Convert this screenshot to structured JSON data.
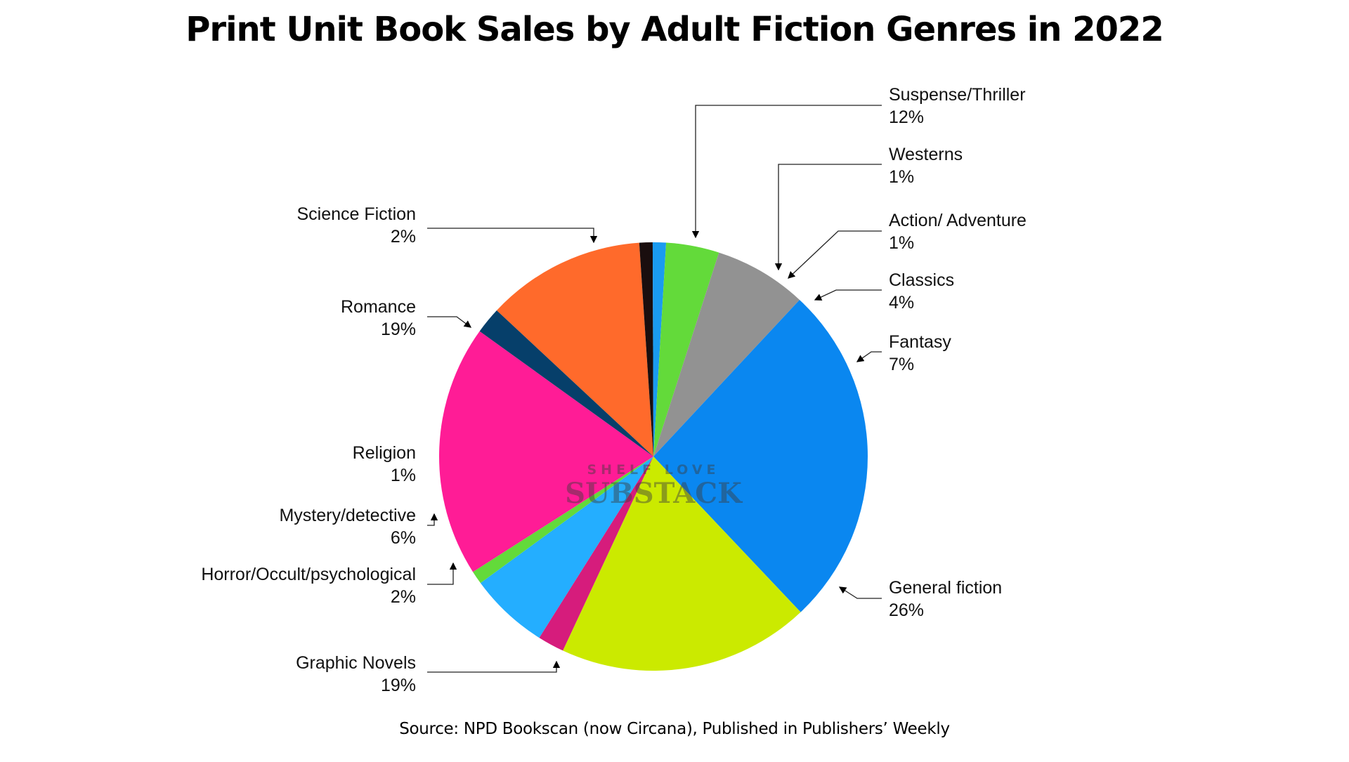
{
  "chart_data": {
    "type": "pie",
    "title": "Print Unit Book Sales by Adult Fiction Genres in 2022",
    "source": "Source: NPD Bookscan (now Circana), Published in Publishers’ Weekly",
    "watermark": {
      "top": "SHELF LOVE",
      "bottom": "SUBSTACK"
    },
    "slices": [
      {
        "label": "Suspense/Thriller",
        "pct_label": "12%",
        "value": 12,
        "color": "#FF6A2B"
      },
      {
        "label": "Westerns",
        "pct_label": "1%",
        "value": 1,
        "color": "#1A0E0E"
      },
      {
        "label": "Action/ Adventure",
        "pct_label": "1%",
        "value": 1,
        "color": "#1A9BF0"
      },
      {
        "label": "Classics",
        "pct_label": "4%",
        "value": 4,
        "color": "#63DA3A"
      },
      {
        "label": "Fantasy",
        "pct_label": "7%",
        "value": 7,
        "color": "#929292"
      },
      {
        "label": "General fiction",
        "pct_label": "26%",
        "value": 26,
        "color": "#0A87F0"
      },
      {
        "label": "Graphic Novels",
        "pct_label": "19%",
        "value": 19,
        "color": "#CBEA00"
      },
      {
        "label": "Horror/Occult/psychological",
        "pct_label": "2%",
        "value": 2,
        "color": "#D61C7C"
      },
      {
        "label": "Mystery/detective",
        "pct_label": "6%",
        "value": 6,
        "color": "#24AEFF"
      },
      {
        "label": "Religion",
        "pct_label": "1%",
        "value": 1,
        "color": "#63DA3A"
      },
      {
        "label": "Romance",
        "pct_label": "19%",
        "value": 19,
        "color": "#FF1C96"
      },
      {
        "label": "Science Fiction",
        "pct_label": "2%",
        "value": 2,
        "color": "#063F6A"
      }
    ],
    "legend": "none"
  }
}
